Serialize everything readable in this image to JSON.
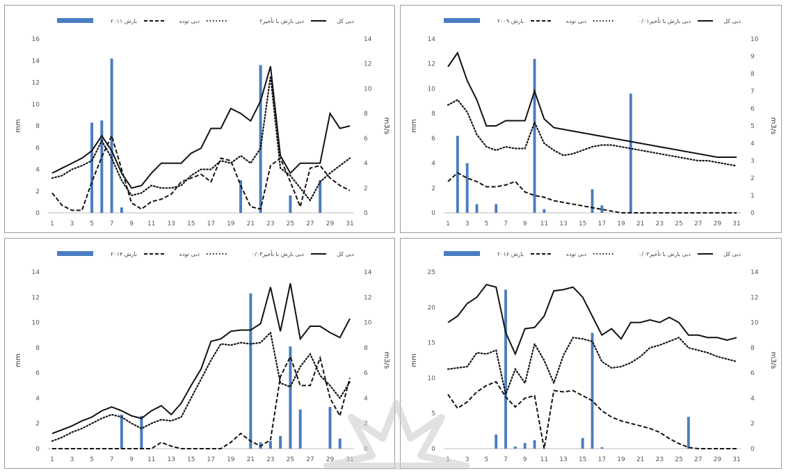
{
  "colors": {
    "bar": "#4a7cc0",
    "line": "#111111",
    "grid": "#e0e0e0",
    "watermark": "#c9c9c9"
  },
  "common_legend": {
    "total": "دبی کل",
    "direct": "دبی بارش با تأخیر",
    "base": "دبی توده"
  },
  "common_axes": {
    "left_label": "mm",
    "right_label": "m3/s"
  },
  "x_ticks": [
    "1",
    "3",
    "5",
    "7",
    "9",
    "11",
    "13",
    "15",
    "17",
    "19",
    "21",
    "23",
    "25",
    "27",
    "29",
    "31"
  ],
  "chart_data": [
    {
      "type": "bar-line",
      "legend_bar": "بارش ۲۰۱۱",
      "legend_direct": "دبی بارش با تأخیر۲",
      "ylim_left": [
        0,
        16
      ],
      "yticks_left": [
        0,
        2,
        4,
        6,
        8,
        10,
        12,
        14,
        16
      ],
      "ylim_right": [
        0,
        14
      ],
      "yticks_right": [
        0,
        2,
        4,
        6,
        8,
        10,
        12,
        14
      ],
      "bars": [
        0,
        0,
        0,
        0,
        8.3,
        8.5,
        14.2,
        0.5,
        0,
        0,
        0,
        0,
        0,
        0,
        0,
        0,
        0,
        0,
        0,
        3.0,
        0,
        13.6,
        0,
        0,
        1.6,
        0,
        0,
        3.0,
        0,
        0,
        0
      ],
      "total": [
        3.2,
        3.6,
        4.0,
        4.4,
        5.0,
        6.2,
        5.0,
        3.2,
        2.0,
        2.2,
        3.2,
        4.0,
        4.0,
        4.0,
        4.8,
        5.2,
        6.8,
        6.8,
        8.4,
        8.0,
        7.4,
        9.0,
        11.8,
        4.6,
        3.2,
        4.0,
        4.0,
        4.0,
        8.0,
        6.8,
        7.0
      ],
      "direct": [
        2.8,
        3.0,
        3.5,
        3.8,
        4.2,
        5.8,
        4.4,
        2.6,
        1.4,
        1.6,
        2.2,
        2.0,
        2.0,
        2.2,
        3.0,
        3.5,
        3.5,
        4.2,
        4.0,
        4.6,
        4.0,
        5.2,
        11.0,
        3.6,
        3.0,
        2.0,
        1.0,
        2.5,
        3.2,
        3.8,
        4.4
      ],
      "base": [
        1.6,
        0.6,
        0.2,
        0.2,
        2.5,
        4.5,
        6.2,
        3.5,
        0.8,
        0.3,
        0.9,
        1.1,
        1.5,
        2.5,
        2.8,
        3.1,
        2.5,
        4.4,
        4.2,
        2.2,
        0.5,
        0.3,
        3.8,
        4.4,
        2.5,
        0.5,
        3.6,
        3.8,
        2.8,
        2.2,
        1.8
      ]
    },
    {
      "type": "bar-line",
      "legend_bar": "بارش ۲۰۰۹",
      "legend_direct": "دبی بارش با تأخیر۰/۰۱",
      "ylim_left": [
        0,
        14
      ],
      "yticks_left": [
        0,
        2,
        4,
        6,
        8,
        10,
        12,
        14
      ],
      "ylim_right": [
        0,
        10
      ],
      "yticks_right": [
        0,
        1,
        2,
        3,
        4,
        5,
        6,
        7,
        8,
        9,
        10
      ],
      "bars": [
        0,
        6.2,
        4.0,
        0.7,
        0,
        0.7,
        0,
        0,
        0,
        12.4,
        0.3,
        0,
        0,
        0,
        0,
        1.9,
        0.6,
        0,
        0,
        9.6,
        0,
        0,
        0,
        0,
        0,
        0,
        0,
        0,
        0,
        0,
        0
      ],
      "total": [
        8.4,
        9.2,
        7.6,
        6.5,
        5.0,
        5.0,
        5.3,
        5.3,
        5.3,
        7.0,
        5.4,
        4.9,
        4.8,
        4.7,
        4.6,
        4.5,
        4.4,
        4.3,
        4.2,
        4.1,
        4.0,
        3.9,
        3.8,
        3.7,
        3.6,
        3.5,
        3.4,
        3.3,
        3.2,
        3.2,
        3.2
      ],
      "direct": [
        6.2,
        6.5,
        5.8,
        4.5,
        3.8,
        3.6,
        3.8,
        3.7,
        3.7,
        5.2,
        4.0,
        3.6,
        3.3,
        3.4,
        3.6,
        3.8,
        3.9,
        3.9,
        3.8,
        3.7,
        3.6,
        3.5,
        3.4,
        3.3,
        3.2,
        3.1,
        3.0,
        3.0,
        2.9,
        2.8,
        2.7
      ],
      "base": [
        1.8,
        2.3,
        2.0,
        1.8,
        1.5,
        1.5,
        1.6,
        1.8,
        1.2,
        1.0,
        0.9,
        0.7,
        0.6,
        0.5,
        0.4,
        0.3,
        0.2,
        0.1,
        0,
        0,
        0,
        0,
        0,
        0,
        0,
        0,
        0,
        0,
        0,
        0,
        0
      ]
    },
    {
      "type": "bar-line",
      "legend_bar": "بارش ۲۰۱۴",
      "legend_direct": "دبی بارش با تأخیر۰/۰۳",
      "ylim_left": [
        0,
        14
      ],
      "yticks_left": [
        0,
        2,
        4,
        6,
        8,
        10,
        12,
        14
      ],
      "ylim_right": [
        0,
        14
      ],
      "yticks_right": [
        0,
        2,
        4,
        6,
        8,
        10,
        12,
        14
      ],
      "bars": [
        0,
        0,
        0,
        0,
        0,
        0,
        0,
        2.7,
        0,
        2.6,
        0,
        0,
        0,
        0,
        0,
        0,
        0,
        0,
        0,
        0,
        12.3,
        0.5,
        0.6,
        1.0,
        8.1,
        3.1,
        0,
        0,
        3.3,
        0.8,
        0
      ],
      "total": [
        1.2,
        1.5,
        1.8,
        2.2,
        2.5,
        3.0,
        3.3,
        3.0,
        2.6,
        2.4,
        3.0,
        3.4,
        2.7,
        3.6,
        5.0,
        6.3,
        8.5,
        8.7,
        9.3,
        9.4,
        9.4,
        9.9,
        12.8,
        9.3,
        13.1,
        8.7,
        9.7,
        9.7,
        9.2,
        8.8,
        10.3
      ],
      "direct": [
        0.6,
        0.9,
        1.3,
        1.6,
        2.0,
        2.4,
        2.7,
        2.5,
        2.0,
        1.6,
        2.0,
        2.3,
        2.2,
        2.5,
        4.0,
        5.5,
        7.0,
        8.3,
        8.2,
        8.4,
        8.3,
        8.4,
        9.2,
        5.2,
        4.9,
        6.5,
        7.5,
        5.8,
        5.0,
        4.0,
        5.3
      ],
      "base": [
        0,
        0,
        0,
        0,
        0,
        0,
        0,
        0,
        0,
        0,
        0,
        0.5,
        0.2,
        0,
        0,
        0,
        0,
        0,
        0.5,
        1.2,
        0.6,
        0.2,
        0.7,
        5.7,
        7.3,
        5.0,
        5.0,
        7.2,
        4.0,
        2.6,
        5.6
      ]
    },
    {
      "type": "bar-line",
      "legend_bar": "بارش ۲۰۱۶",
      "legend_direct": "دبی بارش با تأخیر۰/۰۳",
      "ylim_left": [
        0,
        25
      ],
      "yticks_left": [
        0,
        5,
        10,
        15,
        20,
        25
      ],
      "ylim_right": [
        0,
        14
      ],
      "yticks_right": [
        0,
        2,
        4,
        6,
        8,
        10,
        12,
        14
      ],
      "bars": [
        0,
        0,
        0,
        0,
        0,
        2.0,
        22.5,
        0.3,
        0.8,
        1.2,
        0,
        0,
        0,
        0,
        1.5,
        16.4,
        0.2,
        0,
        0,
        0,
        0,
        0,
        0,
        0,
        0,
        4.5,
        0,
        0,
        0,
        0,
        0
      ],
      "total": [
        10.0,
        10.5,
        11.5,
        12.0,
        13.0,
        12.8,
        9.2,
        7.5,
        9.5,
        9.6,
        10.5,
        12.5,
        12.6,
        12.8,
        12.0,
        10.5,
        9.0,
        9.5,
        8.7,
        10.0,
        10.0,
        10.2,
        10.0,
        10.4,
        10.0,
        9.0,
        9.0,
        8.8,
        8.8,
        8.6,
        8.8
      ],
      "direct": [
        6.3,
        6.4,
        6.5,
        7.6,
        7.5,
        7.8,
        4.3,
        6.3,
        5.2,
        8.3,
        7.0,
        5.2,
        7.4,
        8.8,
        8.7,
        8.5,
        6.9,
        6.4,
        6.5,
        6.8,
        7.3,
        8.0,
        8.2,
        8.5,
        8.8,
        8.0,
        7.8,
        7.6,
        7.3,
        7.1,
        6.9
      ],
      "base": [
        4.3,
        3.2,
        3.7,
        4.5,
        5.0,
        5.3,
        4.1,
        3.3,
        4.0,
        4.2,
        0,
        4.6,
        4.5,
        4.6,
        4.2,
        3.8,
        3.0,
        2.5,
        2.2,
        2.0,
        1.8,
        1.6,
        1.3,
        0.8,
        0.4,
        0.1,
        0,
        0,
        0,
        0,
        0
      ]
    }
  ]
}
